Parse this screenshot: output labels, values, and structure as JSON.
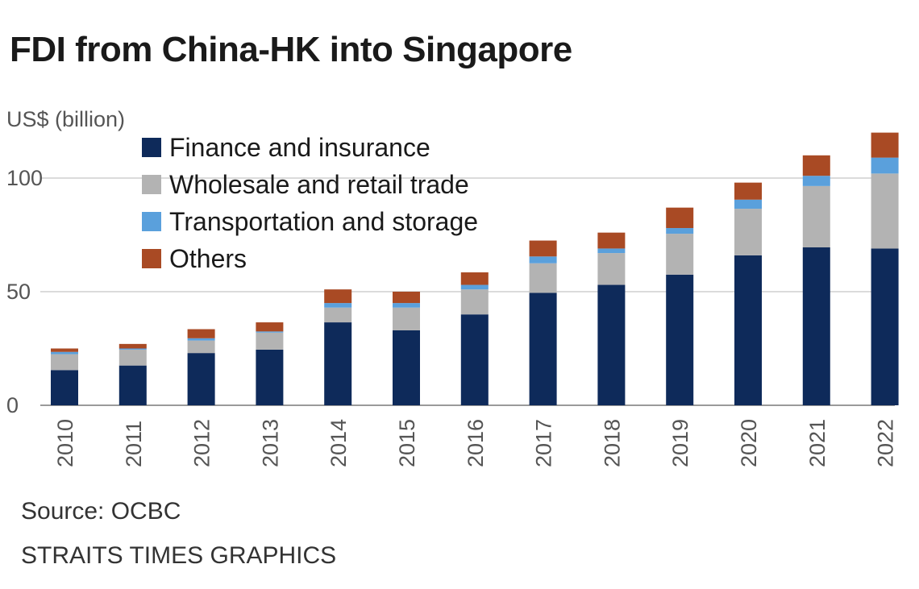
{
  "title": "FDI from China-HK into Singapore",
  "source": "Source: OCBC",
  "credit": "STRAITS TIMES GRAPHICS",
  "chart_data": {
    "type": "bar",
    "stacked": true,
    "title": "FDI from China-HK into Singapore",
    "ylabel": "US$ (billion)",
    "xlabel": "",
    "ylim": [
      0,
      120
    ],
    "yticks": [
      0,
      50,
      100
    ],
    "grid": true,
    "legend_position": "top-left",
    "categories": [
      "2010",
      "2011",
      "2012",
      "2013",
      "2014",
      "2015",
      "2016",
      "2017",
      "2018",
      "2019",
      "2020",
      "2021",
      "2022"
    ],
    "series": [
      {
        "name": "Finance and insurance",
        "color": "#0e2a5a",
        "values": [
          15.5,
          17.5,
          23,
          24.5,
          36.5,
          33,
          40,
          49.5,
          53,
          57.5,
          66,
          69.5,
          69
        ]
      },
      {
        "name": "Wholesale and retail trade",
        "color": "#b3b3b3",
        "values": [
          7,
          7,
          5.5,
          7.5,
          6.5,
          10,
          11,
          13,
          14,
          18,
          20.5,
          27,
          33
        ]
      },
      {
        "name": "Transportation and storage",
        "color": "#5aa0dc",
        "values": [
          1,
          0.5,
          1,
          0.5,
          2,
          2,
          2,
          3,
          2,
          2.5,
          4,
          4.5,
          7
        ]
      },
      {
        "name": "Others",
        "color": "#a94a24",
        "values": [
          1.5,
          2,
          4,
          4,
          6,
          5,
          5.5,
          7,
          7,
          9,
          7.5,
          9,
          11
        ]
      }
    ]
  }
}
